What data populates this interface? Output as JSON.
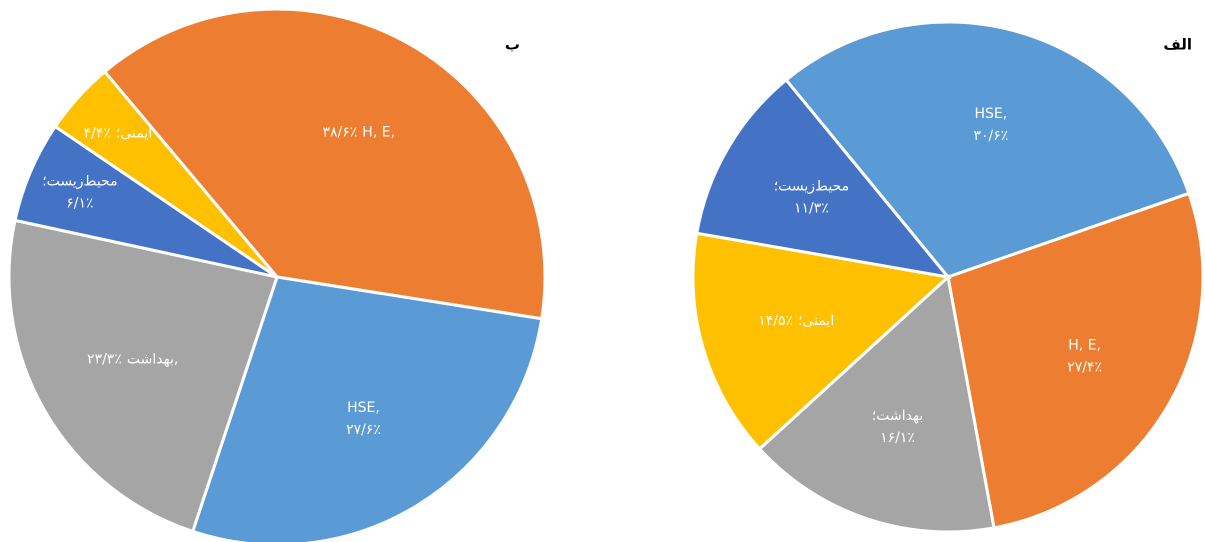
{
  "chart_data": [
    {
      "type": "pie",
      "title": "ب",
      "categories": [
        "H, E,",
        "HSE,",
        "بهداشت,",
        "محیط‌زیست؛",
        "ایمنی؛"
      ],
      "values": [
        38.6,
        27.6,
        23.3,
        6.1,
        4.4
      ],
      "value_labels": [
        "۳۸/۶٪",
        "۲۷/۶٪",
        "۲۳/۳٪",
        "۶/۱٪",
        "۴/۴٪"
      ],
      "colors": [
        "#ed7d31",
        "#5b9bd5",
        "#a5a5a5",
        "#4472c4",
        "#ffc000"
      ]
    },
    {
      "type": "pie",
      "title": "الف",
      "categories": [
        "HSE,",
        "H, E,",
        "بهداشت؛",
        "ایمنی؛",
        "محیط‌زیست؛"
      ],
      "values": [
        30.6,
        27.4,
        16.1,
        14.5,
        11.3
      ],
      "value_labels": [
        "۳۰/۶٪",
        "۲۷/۴٪",
        "۱۶/۱٪",
        "۱۴/۵٪",
        "۱۱/۳٪"
      ],
      "colors": [
        "#5b9bd5",
        "#ed7d31",
        "#a5a5a5",
        "#ffc000",
        "#4472c4"
      ]
    }
  ]
}
